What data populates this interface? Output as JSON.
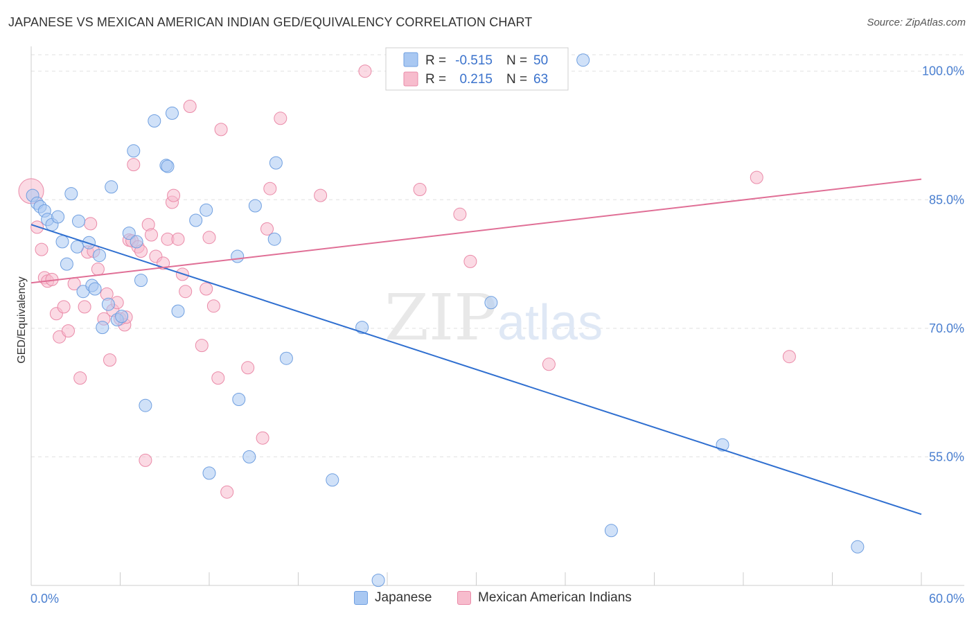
{
  "header": {
    "title": "JAPANESE VS MEXICAN AMERICAN INDIAN GED/EQUIVALENCY CORRELATION CHART",
    "source": "Source: ZipAtlas.com"
  },
  "watermark": {
    "zip": "ZIP",
    "atlas": "atlas"
  },
  "legend": {
    "rows": [
      {
        "r_label": "R =",
        "r_value": "-0.515",
        "n_label": "N =",
        "n_value": "50"
      },
      {
        "r_label": "R =",
        "r_value": "0.215",
        "n_label": "N =",
        "n_value": "63"
      }
    ]
  },
  "bottom_legend": {
    "items": [
      {
        "label": "Japanese"
      },
      {
        "label": "Mexican American Indians"
      }
    ]
  },
  "colors": {
    "japanese_fill": "#a9c8f2",
    "japanese_stroke": "#6f9fe0",
    "japanese_line": "#2f6fd0",
    "mexican_fill": "#f7bccd",
    "mexican_stroke": "#ea8aa8",
    "mexican_line": "#e06f96",
    "grid": "#e0e0e0",
    "axis_text": "#4a7fd0"
  },
  "chart_data": {
    "type": "scatter",
    "title": "JAPANESE VS MEXICAN AMERICAN INDIAN GED/EQUIVALENCY CORRELATION CHART",
    "xlabel": "",
    "ylabel": "GED/Equivalency",
    "xlim": [
      0,
      60
    ],
    "ylim": [
      40,
      102
    ],
    "x_tick_labels": [
      "0.0%",
      "60.0%"
    ],
    "y_ticks": [
      100,
      85,
      70,
      55
    ],
    "y_tick_labels": [
      "100.0%",
      "85.0%",
      "70.0%",
      "55.0%"
    ],
    "grid": true,
    "legend_position": "top-center",
    "series": [
      {
        "name": "Japanese",
        "R": -0.515,
        "N": 50,
        "trend": {
          "x": [
            0,
            60
          ],
          "y": [
            82.1,
            48.3
          ]
        },
        "points": [
          [
            0.1,
            85.5
          ],
          [
            0.4,
            84.6
          ],
          [
            0.6,
            84.2
          ],
          [
            0.9,
            83.7
          ],
          [
            1.1,
            82.7
          ],
          [
            1.4,
            82.1
          ],
          [
            1.8,
            83.0
          ],
          [
            2.1,
            80.1
          ],
          [
            2.4,
            77.5
          ],
          [
            2.7,
            85.7
          ],
          [
            3.1,
            79.5
          ],
          [
            3.2,
            82.5
          ],
          [
            3.5,
            74.3
          ],
          [
            3.9,
            80.0
          ],
          [
            4.1,
            75.0
          ],
          [
            4.3,
            74.6
          ],
          [
            4.6,
            78.5
          ],
          [
            4.8,
            70.1
          ],
          [
            5.2,
            72.8
          ],
          [
            5.4,
            86.5
          ],
          [
            5.8,
            71.0
          ],
          [
            6.1,
            71.4
          ],
          [
            6.6,
            81.1
          ],
          [
            6.9,
            90.7
          ],
          [
            7.1,
            80.1
          ],
          [
            7.4,
            75.6
          ],
          [
            7.7,
            61.0
          ],
          [
            8.3,
            94.2
          ],
          [
            9.1,
            89.0
          ],
          [
            9.2,
            88.9
          ],
          [
            9.5,
            95.1
          ],
          [
            9.9,
            72.0
          ],
          [
            11.1,
            82.6
          ],
          [
            11.8,
            83.8
          ],
          [
            13.9,
            78.4
          ],
          [
            14.0,
            61.7
          ],
          [
            14.7,
            55.0
          ],
          [
            15.1,
            84.3
          ],
          [
            16.4,
            80.4
          ],
          [
            16.5,
            89.3
          ],
          [
            17.2,
            66.5
          ],
          [
            20.3,
            52.3
          ],
          [
            22.3,
            70.1
          ],
          [
            23.4,
            40.6
          ],
          [
            31.0,
            73.0
          ],
          [
            37.2,
            101.3
          ],
          [
            39.1,
            46.4
          ],
          [
            46.6,
            56.4
          ],
          [
            55.7,
            44.5
          ],
          [
            12.0,
            53.1
          ]
        ]
      },
      {
        "name": "Mexican American Indians",
        "R": 0.215,
        "N": 63,
        "trend": {
          "x": [
            0,
            60
          ],
          "y": [
            75.3,
            87.4
          ]
        },
        "points": [
          [
            0.0,
            86.0
          ],
          [
            0.4,
            81.8
          ],
          [
            0.7,
            79.2
          ],
          [
            0.9,
            75.9
          ],
          [
            1.1,
            75.5
          ],
          [
            1.4,
            75.7
          ],
          [
            1.7,
            71.7
          ],
          [
            1.9,
            69.0
          ],
          [
            2.2,
            72.5
          ],
          [
            2.5,
            69.7
          ],
          [
            2.9,
            75.2
          ],
          [
            3.3,
            64.2
          ],
          [
            3.6,
            72.5
          ],
          [
            3.8,
            78.9
          ],
          [
            4.0,
            82.2
          ],
          [
            4.2,
            79.0
          ],
          [
            4.5,
            76.9
          ],
          [
            4.9,
            71.1
          ],
          [
            5.1,
            74.0
          ],
          [
            5.3,
            66.3
          ],
          [
            5.5,
            72.1
          ],
          [
            5.8,
            73.0
          ],
          [
            6.0,
            71.1
          ],
          [
            6.3,
            70.4
          ],
          [
            6.6,
            80.3
          ],
          [
            6.8,
            80.2
          ],
          [
            6.9,
            89.1
          ],
          [
            7.2,
            79.5
          ],
          [
            7.4,
            79.0
          ],
          [
            7.7,
            54.6
          ],
          [
            7.9,
            82.1
          ],
          [
            8.1,
            80.9
          ],
          [
            8.4,
            78.4
          ],
          [
            8.9,
            77.6
          ],
          [
            9.2,
            80.4
          ],
          [
            9.5,
            84.7
          ],
          [
            9.6,
            85.5
          ],
          [
            9.9,
            80.4
          ],
          [
            10.2,
            76.3
          ],
          [
            10.4,
            74.3
          ],
          [
            10.7,
            95.9
          ],
          [
            11.5,
            68.0
          ],
          [
            11.8,
            74.6
          ],
          [
            12.0,
            80.6
          ],
          [
            12.3,
            72.6
          ],
          [
            12.6,
            64.2
          ],
          [
            12.8,
            93.2
          ],
          [
            13.2,
            50.9
          ],
          [
            14.6,
            65.4
          ],
          [
            15.6,
            57.2
          ],
          [
            15.9,
            81.6
          ],
          [
            16.1,
            86.3
          ],
          [
            16.8,
            94.5
          ],
          [
            19.5,
            85.5
          ],
          [
            22.5,
            100.0
          ],
          [
            26.2,
            86.2
          ],
          [
            28.9,
            83.3
          ],
          [
            29.6,
            77.8
          ],
          [
            31.5,
            100.0
          ],
          [
            34.9,
            65.8
          ],
          [
            48.9,
            87.6
          ],
          [
            51.1,
            66.7
          ],
          [
            6.4,
            71.3
          ]
        ]
      }
    ]
  }
}
